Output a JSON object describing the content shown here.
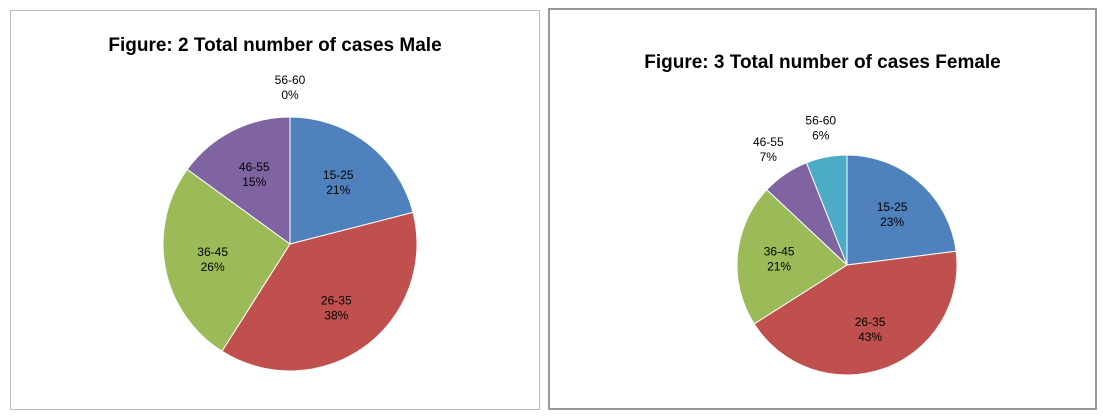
{
  "chart_data": [
    {
      "type": "pie",
      "title": "Figure: 2 Total number of cases Male",
      "categories": [
        "15-25",
        "26-35",
        "36-45",
        "46-55",
        "56-60"
      ],
      "values": [
        21,
        38,
        26,
        15,
        0
      ],
      "value_labels": [
        "21%",
        "38%",
        "26%",
        "15%",
        "0%"
      ],
      "colors": [
        "#4f81bd",
        "#c0504d",
        "#9bbb59",
        "#8064a2",
        "#4bacc6"
      ]
    },
    {
      "type": "pie",
      "title": "Figure: 3 Total number of cases Female",
      "categories": [
        "15-25",
        "26-35",
        "36-45",
        "46-55",
        "56-60"
      ],
      "values": [
        23,
        43,
        21,
        7,
        6
      ],
      "value_labels": [
        "23%",
        "43%",
        "21%",
        "7%",
        "6%"
      ],
      "colors": [
        "#4f81bd",
        "#c0504d",
        "#9bbb59",
        "#8064a2",
        "#4bacc6"
      ]
    }
  ]
}
